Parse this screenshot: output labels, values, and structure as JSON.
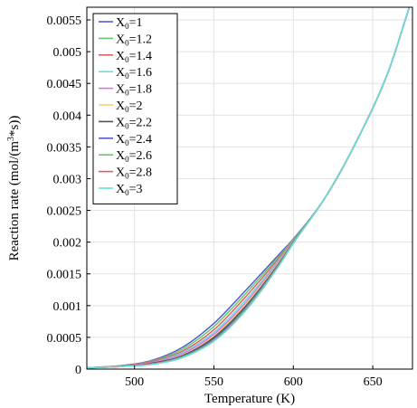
{
  "chart_data": {
    "type": "line",
    "title": "",
    "xlabel": "Temperature (K)",
    "ylabel": "Reaction rate (mol/(m³*s))",
    "xlim": [
      470,
      675
    ],
    "ylim": [
      0,
      0.0057
    ],
    "x_ticks": [
      500,
      550,
      600,
      650
    ],
    "x_tick_labels": [
      "500",
      "550",
      "600",
      "650"
    ],
    "y_ticks": [
      0,
      0.0005,
      0.001,
      0.0015,
      0.002,
      0.0025,
      0.003,
      0.0035,
      0.004,
      0.0045,
      0.005,
      0.0055
    ],
    "y_tick_labels": [
      "0",
      "0.0005",
      "0.001",
      "0.0015",
      "0.002",
      "0.0025",
      "0.003",
      "0.0035",
      "0.004",
      "0.0045",
      "0.005",
      "0.0055"
    ],
    "grid": true,
    "legend_position": "top-left",
    "x": [
      470,
      490,
      510,
      530,
      550,
      570,
      590,
      600,
      620,
      640,
      660,
      673
    ],
    "series": [
      {
        "name": "X₀=1",
        "label_main": "X",
        "label_sub": "0",
        "label_rest": "=1",
        "color": "#4f5fd0",
        "values": [
          2e-05,
          5e-05,
          0.00013,
          0.00034,
          0.00072,
          0.00124,
          0.00178,
          0.00205,
          0.0027,
          0.0036,
          0.0047,
          0.0057
        ]
      },
      {
        "name": "X₀=1.2",
        "label_main": "X",
        "label_sub": "0",
        "label_rest": "=1.2",
        "color": "#6cc46c",
        "values": [
          2e-05,
          5e-05,
          0.00012,
          0.00031,
          0.00067,
          0.00119,
          0.00175,
          0.00204,
          0.0027,
          0.0036,
          0.0047,
          0.0057
        ]
      },
      {
        "name": "X₀=1.4",
        "label_main": "X",
        "label_sub": "0",
        "label_rest": "=1.4",
        "color": "#e06060",
        "values": [
          2e-05,
          5e-05,
          0.00011,
          0.00028,
          0.00062,
          0.00114,
          0.00172,
          0.00203,
          0.0027,
          0.0036,
          0.0047,
          0.0057
        ]
      },
      {
        "name": "X₀=1.6",
        "label_main": "X",
        "label_sub": "0",
        "label_rest": "=1.6",
        "color": "#66e0e0",
        "values": [
          2e-05,
          4e-05,
          0.0001,
          0.00026,
          0.00058,
          0.00109,
          0.00169,
          0.00202,
          0.0027,
          0.0036,
          0.0047,
          0.0057
        ]
      },
      {
        "name": "X₀=1.8",
        "label_main": "X",
        "label_sub": "0",
        "label_rest": "=1.8",
        "color": "#e070e0",
        "values": [
          2e-05,
          4e-05,
          0.0001,
          0.00024,
          0.00055,
          0.00105,
          0.00167,
          0.00201,
          0.0027,
          0.0036,
          0.0047,
          0.0057
        ]
      },
      {
        "name": "X₀=2",
        "label_main": "X",
        "label_sub": "0",
        "label_rest": "=2",
        "color": "#f0d070",
        "values": [
          2e-05,
          4e-05,
          9e-05,
          0.00022,
          0.00052,
          0.00102,
          0.00165,
          0.002,
          0.0027,
          0.0036,
          0.0047,
          0.0057
        ]
      },
      {
        "name": "X₀=2.2",
        "label_main": "X",
        "label_sub": "0",
        "label_rest": "=2.2",
        "color": "#505050",
        "values": [
          2e-05,
          4e-05,
          9e-05,
          0.00021,
          0.0005,
          0.00099,
          0.00163,
          0.002,
          0.0027,
          0.0036,
          0.0047,
          0.0057
        ]
      },
      {
        "name": "X₀=2.4",
        "label_main": "X",
        "label_sub": "0",
        "label_rest": "=2.4",
        "color": "#4f5fd0",
        "values": [
          2e-05,
          4e-05,
          8e-05,
          0.0002,
          0.00048,
          0.00097,
          0.00162,
          0.00199,
          0.0027,
          0.0036,
          0.0047,
          0.0057
        ]
      },
      {
        "name": "X₀=2.6",
        "label_main": "X",
        "label_sub": "0",
        "label_rest": "=2.6",
        "color": "#6cc46c",
        "values": [
          2e-05,
          4e-05,
          8e-05,
          0.00019,
          0.00046,
          0.00095,
          0.00161,
          0.00199,
          0.0027,
          0.0036,
          0.0047,
          0.0057
        ]
      },
      {
        "name": "X₀=2.8",
        "label_main": "X",
        "label_sub": "0",
        "label_rest": "=2.8",
        "color": "#e06060",
        "values": [
          2e-05,
          4e-05,
          8e-05,
          0.00018,
          0.00045,
          0.00093,
          0.0016,
          0.00198,
          0.0027,
          0.0036,
          0.0047,
          0.0057
        ]
      },
      {
        "name": "X₀=3",
        "label_main": "X",
        "label_sub": "0",
        "label_rest": "=3",
        "color": "#66e0e0",
        "values": [
          2e-05,
          4e-05,
          7e-05,
          0.00018,
          0.00044,
          0.00092,
          0.00159,
          0.00198,
          0.0027,
          0.0036,
          0.0047,
          0.0057
        ]
      }
    ]
  }
}
